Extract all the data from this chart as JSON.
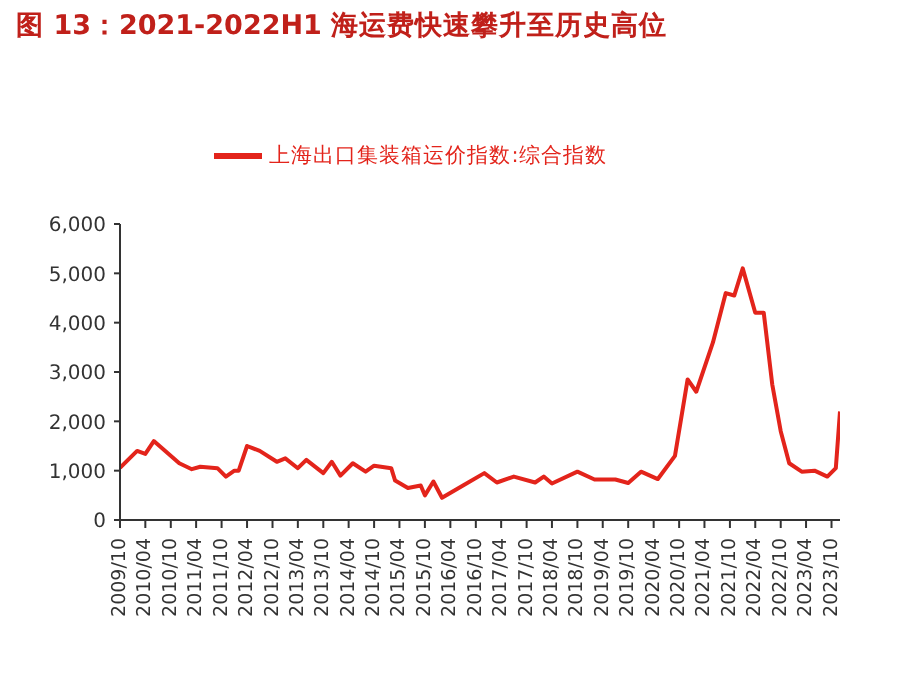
{
  "chart_data": {
    "type": "line",
    "title": "图 13：2021-2022H1 海运费快速攀升至历史高位",
    "x": [
      "2009-10",
      "2010-02",
      "2010-04",
      "2010-06",
      "2010-12",
      "2011-03",
      "2011-05",
      "2011-09",
      "2011-11",
      "2012-01",
      "2012-02",
      "2012-04",
      "2012-07",
      "2012-11",
      "2013-01",
      "2013-04",
      "2013-06",
      "2013-10",
      "2013-12",
      "2014-02",
      "2014-05",
      "2014-08",
      "2014-10",
      "2015-02",
      "2015-03",
      "2015-06",
      "2015-09",
      "2015-10",
      "2015-12",
      "2016-02",
      "2016-07",
      "2016-12",
      "2017-03",
      "2017-07",
      "2017-12",
      "2018-02",
      "2018-04",
      "2018-10",
      "2019-02",
      "2019-07",
      "2019-10",
      "2020-01",
      "2020-05",
      "2020-09",
      "2020-12",
      "2021-02",
      "2021-06",
      "2021-09",
      "2021-11",
      "2022-01",
      "2022-04",
      "2022-06",
      "2022-08",
      "2022-10",
      "2022-12",
      "2023-03",
      "2023-06",
      "2023-09",
      "2023-11",
      "2023-12"
    ],
    "series": [
      {
        "name": "上海出口集装箱运价指数:综合指数",
        "color": "#e3241b",
        "values": [
          1060,
          1400,
          1340,
          1600,
          1150,
          1030,
          1080,
          1050,
          880,
          1000,
          1000,
          1500,
          1400,
          1180,
          1250,
          1050,
          1220,
          950,
          1180,
          900,
          1150,
          980,
          1100,
          1050,
          800,
          650,
          700,
          500,
          780,
          450,
          700,
          950,
          760,
          880,
          760,
          880,
          740,
          980,
          820,
          820,
          750,
          980,
          830,
          1300,
          2850,
          2600,
          3600,
          4600,
          4550,
          5100,
          4200,
          4200,
          2750,
          1800,
          1150,
          980,
          1000,
          880,
          1050,
          2200
        ]
      }
    ],
    "xlim": [
      "2009-10",
      "2023-12"
    ],
    "xticks": [
      {
        "value": "2009-10",
        "label": "2009/10"
      },
      {
        "value": "2010-04",
        "label": "2010/04"
      },
      {
        "value": "2010-10",
        "label": "2010/10"
      },
      {
        "value": "2011-04",
        "label": "2011/04"
      },
      {
        "value": "2011-10",
        "label": "2011/10"
      },
      {
        "value": "2012-04",
        "label": "2012/04"
      },
      {
        "value": "2012-10",
        "label": "2012/10"
      },
      {
        "value": "2013-04",
        "label": "2013/04"
      },
      {
        "value": "2013-10",
        "label": "2013/10"
      },
      {
        "value": "2014-04",
        "label": "2014/04"
      },
      {
        "value": "2014-10",
        "label": "2014/10"
      },
      {
        "value": "2015-04",
        "label": "2015/04"
      },
      {
        "value": "2015-10",
        "label": "2015/10"
      },
      {
        "value": "2016-04",
        "label": "2016/04"
      },
      {
        "value": "2016-10",
        "label": "2016/10"
      },
      {
        "value": "2017-04",
        "label": "2017/04"
      },
      {
        "value": "2017-10",
        "label": "2017/10"
      },
      {
        "value": "2018-04",
        "label": "2018/04"
      },
      {
        "value": "2018-10",
        "label": "2018/10"
      },
      {
        "value": "2019-04",
        "label": "2019/04"
      },
      {
        "value": "2019-10",
        "label": "2019/10"
      },
      {
        "value": "2020-04",
        "label": "2020/04"
      },
      {
        "value": "2020-10",
        "label": "2020/10"
      },
      {
        "value": "2021-04",
        "label": "2021/04"
      },
      {
        "value": "2021-10",
        "label": "2021/10"
      },
      {
        "value": "2022-04",
        "label": "2022/04"
      },
      {
        "value": "2022-10",
        "label": "2022/10"
      },
      {
        "value": "2023-04",
        "label": "2023/04"
      },
      {
        "value": "2023-10",
        "label": "2023/10"
      }
    ],
    "ylim": [
      0,
      6000
    ],
    "yticks": [
      {
        "value": 0,
        "label": "0"
      },
      {
        "value": 1000,
        "label": "1,000"
      },
      {
        "value": 2000,
        "label": "2,000"
      },
      {
        "value": 3000,
        "label": "3,000"
      },
      {
        "value": 4000,
        "label": "4,000"
      },
      {
        "value": 5000,
        "label": "5,000"
      },
      {
        "value": 6000,
        "label": "6,000"
      }
    ],
    "grid": false,
    "legend": "top",
    "marker": "none",
    "line_style": "solid"
  }
}
